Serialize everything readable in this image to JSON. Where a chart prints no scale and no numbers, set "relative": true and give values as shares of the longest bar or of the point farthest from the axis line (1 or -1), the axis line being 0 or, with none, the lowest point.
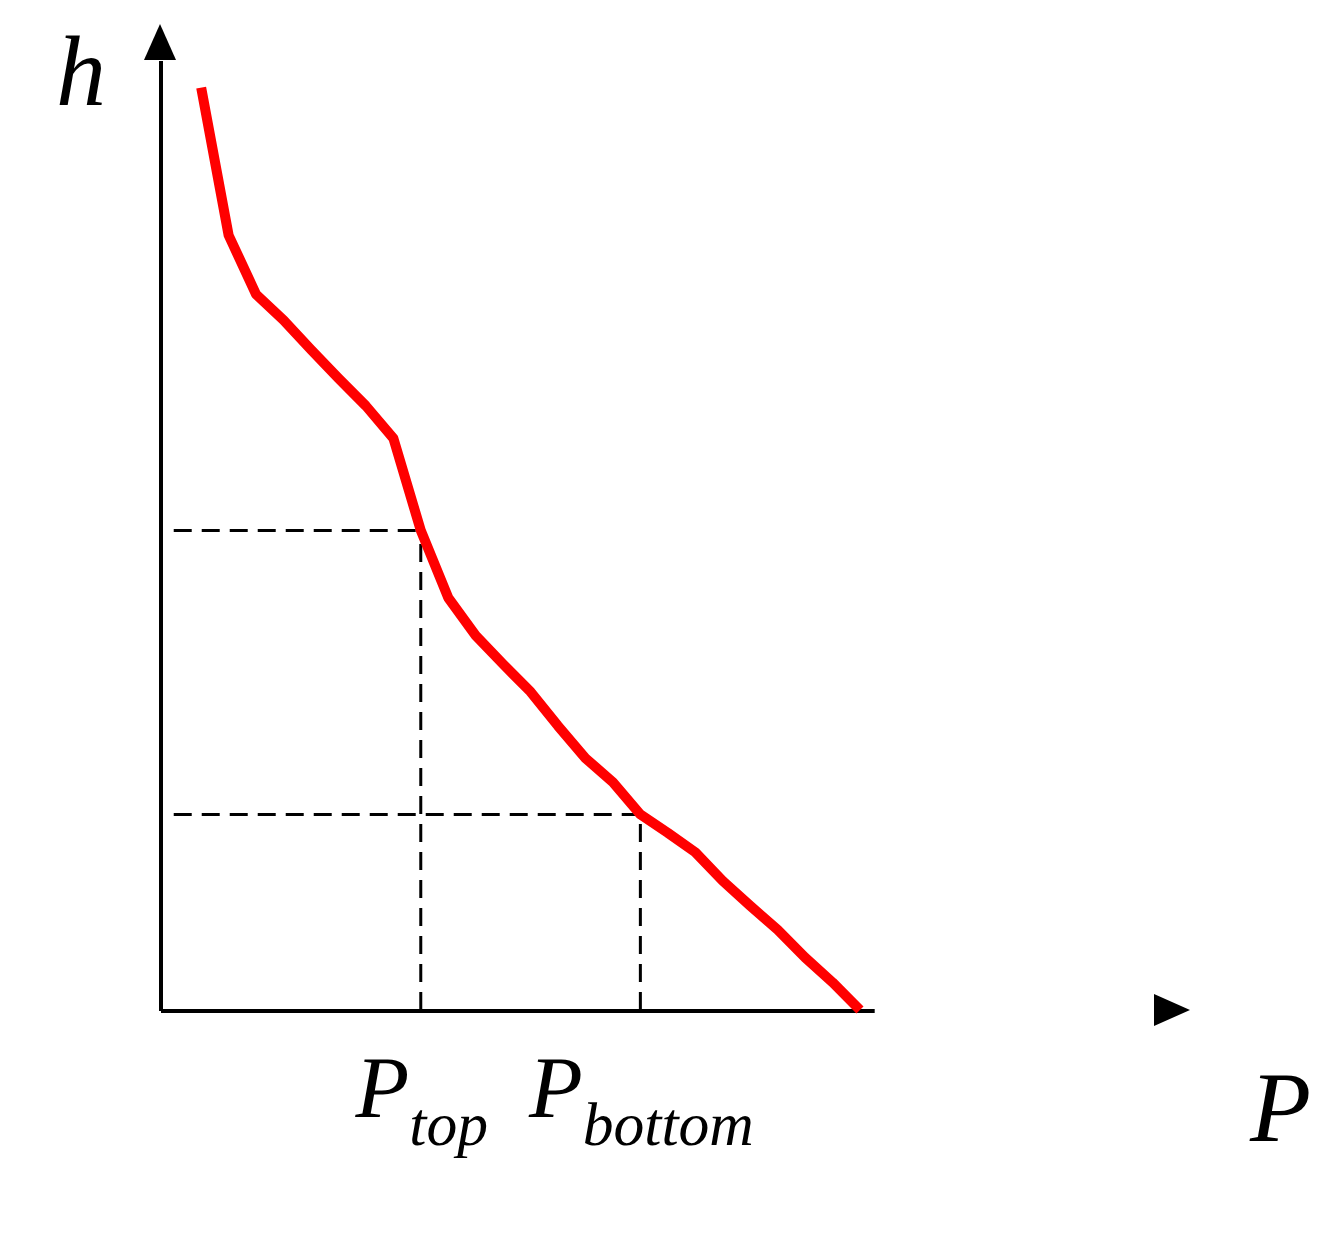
{
  "chart_data": {
    "type": "line",
    "relative": true,
    "xlabel": "P",
    "ylabel": "h",
    "categories": [
      null,
      null,
      null,
      null,
      null,
      null,
      null,
      null,
      null,
      "P$_{top}$",
      null,
      null,
      null,
      null,
      null,
      null,
      null,
      "P$_{bottom}$",
      null,
      null,
      null,
      null,
      null,
      null,
      null,
      null
    ],
    "marker": "none",
    "series": [
      {
        "color": "#ff0000",
        "line_style": "solid",
        "values": [
          null,
          1.0,
          0.84,
          0.776,
          0.748,
          0.716,
          0.685,
          0.655,
          0.62,
          0.52,
          0.447,
          0.406,
          0.375,
          0.345,
          0.308,
          0.273,
          0.247,
          0.212,
          0.192,
          0.171,
          0.14,
          0.113,
          0.087,
          0.057,
          0.03,
          0.0
        ]
      }
    ],
    "ref_lines": [
      {
        "axis": "y",
        "value": 0.52,
        "color": "#000000",
        "line_style": "dashed"
      },
      {
        "axis": "y",
        "value": 0.212,
        "color": "#000000",
        "line_style": "dashed"
      },
      {
        "axis": "x",
        "value": "P$_{top}$",
        "color": "#000000",
        "line_style": "dashed"
      },
      {
        "axis": "x",
        "value": "P$_{bottom}$",
        "color": "#000000",
        "line_style": "dashed"
      }
    ]
  }
}
